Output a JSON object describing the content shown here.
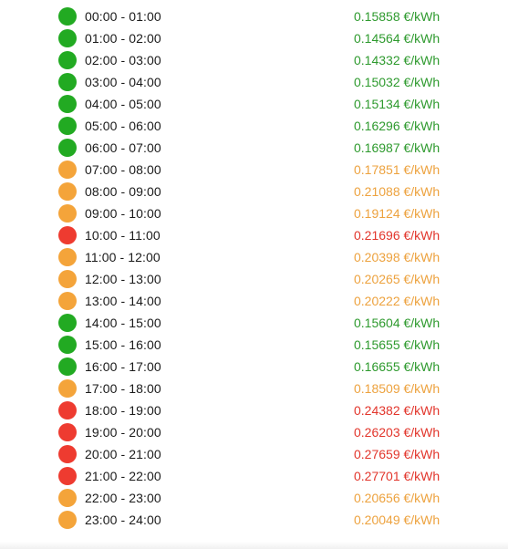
{
  "colors": {
    "green": "#22aa22",
    "orange": "#f4a43a",
    "red": "#ee3b30",
    "green_text": "#2e9a2e",
    "orange_text": "#eda23e",
    "red_text": "#e2352b"
  },
  "rows": [
    {
      "time": "00:00 - 01:00",
      "price": "0.15858 €/kWh",
      "level": "green"
    },
    {
      "time": "01:00 - 02:00",
      "price": "0.14564 €/kWh",
      "level": "green"
    },
    {
      "time": "02:00 - 03:00",
      "price": "0.14332 €/kWh",
      "level": "green"
    },
    {
      "time": "03:00 - 04:00",
      "price": "0.15032 €/kWh",
      "level": "green"
    },
    {
      "time": "04:00 - 05:00",
      "price": "0.15134 €/kWh",
      "level": "green"
    },
    {
      "time": "05:00 - 06:00",
      "price": "0.16296 €/kWh",
      "level": "green"
    },
    {
      "time": "06:00 - 07:00",
      "price": "0.16987 €/kWh",
      "level": "green"
    },
    {
      "time": "07:00 - 08:00",
      "price": "0.17851 €/kWh",
      "level": "orange"
    },
    {
      "time": "08:00 - 09:00",
      "price": "0.21088 €/kWh",
      "level": "orange"
    },
    {
      "time": "09:00 - 10:00",
      "price": "0.19124 €/kWh",
      "level": "orange"
    },
    {
      "time": "10:00 - 11:00",
      "price": "0.21696 €/kWh",
      "level": "red"
    },
    {
      "time": "11:00 - 12:00",
      "price": "0.20398 €/kWh",
      "level": "orange"
    },
    {
      "time": "12:00 - 13:00",
      "price": "0.20265 €/kWh",
      "level": "orange"
    },
    {
      "time": "13:00 - 14:00",
      "price": "0.20222 €/kWh",
      "level": "orange"
    },
    {
      "time": "14:00 - 15:00",
      "price": "0.15604 €/kWh",
      "level": "green"
    },
    {
      "time": "15:00 - 16:00",
      "price": "0.15655 €/kWh",
      "level": "green"
    },
    {
      "time": "16:00 - 17:00",
      "price": "0.16655 €/kWh",
      "level": "green"
    },
    {
      "time": "17:00 - 18:00",
      "price": "0.18509 €/kWh",
      "level": "orange"
    },
    {
      "time": "18:00 - 19:00",
      "price": "0.24382 €/kWh",
      "level": "red"
    },
    {
      "time": "19:00 - 20:00",
      "price": "0.26203 €/kWh",
      "level": "red"
    },
    {
      "time": "20:00 - 21:00",
      "price": "0.27659 €/kWh",
      "level": "red"
    },
    {
      "time": "21:00 - 22:00",
      "price": "0.27701 €/kWh",
      "level": "red"
    },
    {
      "time": "22:00 - 23:00",
      "price": "0.20656 €/kWh",
      "level": "orange"
    },
    {
      "time": "23:00 - 24:00",
      "price": "0.20049 €/kWh",
      "level": "orange"
    }
  ]
}
